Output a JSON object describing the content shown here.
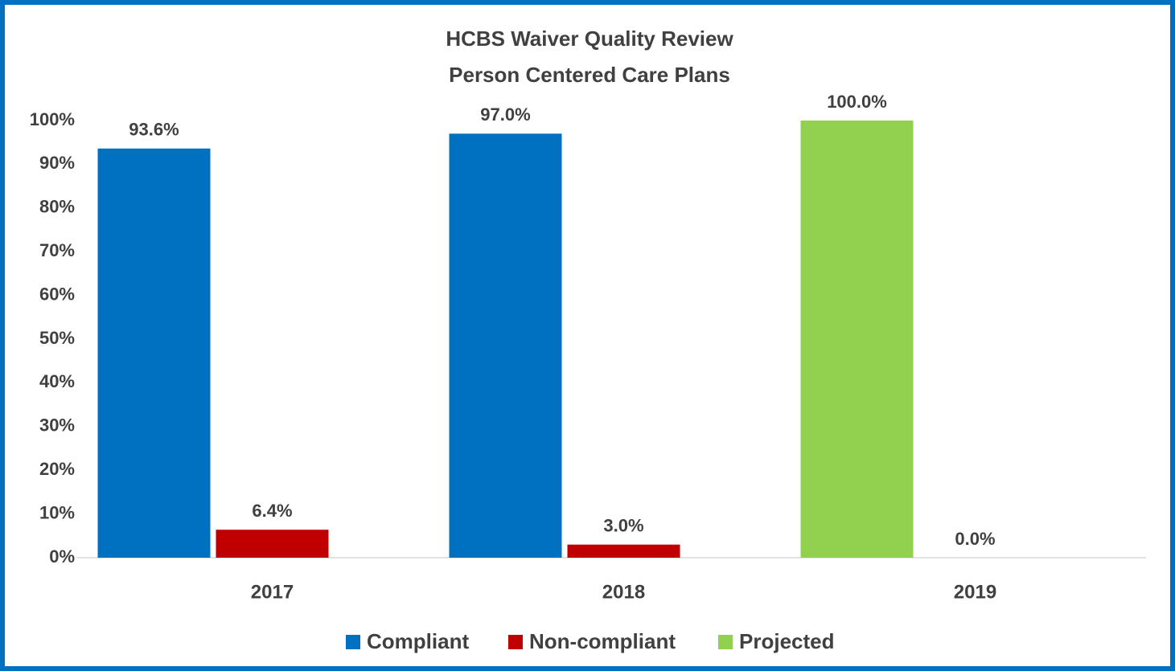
{
  "chart_data": {
    "type": "bar",
    "title": "HCBS Waiver Quality Review",
    "subtitle": "Person Centered Care Plans",
    "categories": [
      "2017",
      "2018",
      "2019"
    ],
    "series": [
      {
        "name": "Compliant",
        "color": "#0070c0",
        "values": [
          93.6,
          97.0,
          null
        ],
        "value_labels": [
          "93.6%",
          "97.0%",
          null
        ]
      },
      {
        "name": "Non-compliant",
        "color": "#c00000",
        "values": [
          6.4,
          3.0,
          0.0
        ],
        "value_labels": [
          "6.4%",
          "3.0%",
          "0.0%"
        ]
      },
      {
        "name": "Projected",
        "color": "#92d050",
        "values": [
          null,
          null,
          100.0
        ],
        "value_labels": [
          null,
          null,
          "100.0%"
        ]
      }
    ],
    "ylim": [
      0,
      100
    ],
    "yticks": [
      {
        "value": 0,
        "label": "0%"
      },
      {
        "value": 10,
        "label": "10%"
      },
      {
        "value": 20,
        "label": "20%"
      },
      {
        "value": 30,
        "label": "30%"
      },
      {
        "value": 40,
        "label": "40%"
      },
      {
        "value": 50,
        "label": "50%"
      },
      {
        "value": 60,
        "label": "60%"
      },
      {
        "value": 70,
        "label": "70%"
      },
      {
        "value": 80,
        "label": "80%"
      },
      {
        "value": 90,
        "label": "90%"
      },
      {
        "value": 100,
        "label": "100%"
      }
    ],
    "grid": false,
    "legend": "bottom"
  }
}
